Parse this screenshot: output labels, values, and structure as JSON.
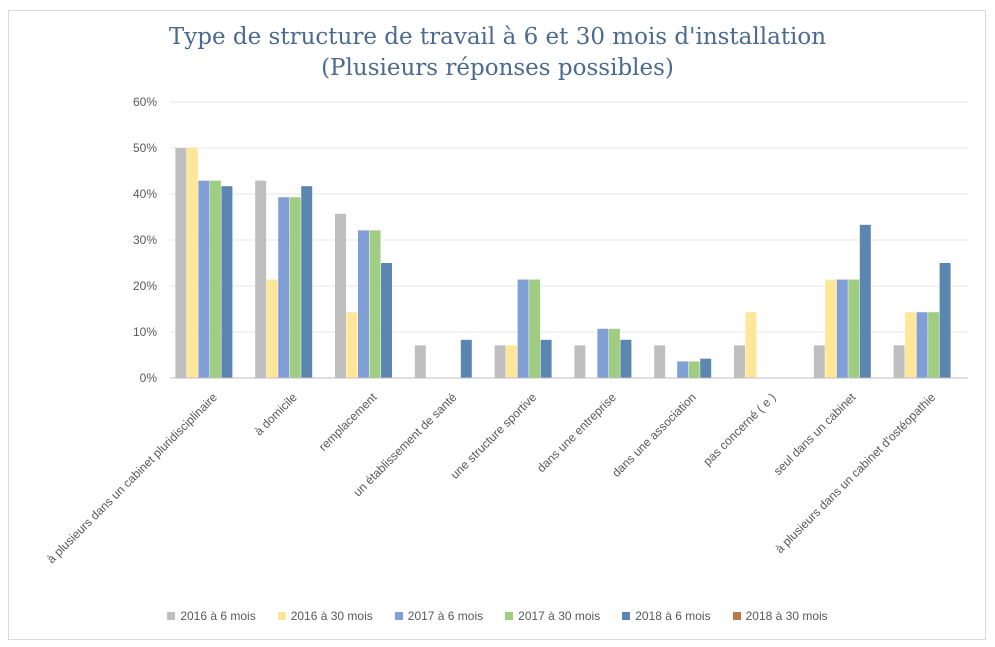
{
  "chart_data": {
    "type": "bar",
    "title": "Type de structure de travail à 6 et 30 mois d'installation",
    "subtitle": "(Plusieurs réponses possibles)",
    "categories": [
      "à plusieurs dans un cabinet pluridisciplinaire",
      "à domicile",
      "remplacement",
      "un établissement de santé",
      "une structure sportive",
      "dans une entreprise",
      "dans une association",
      "pas concerné ( e )",
      "seul dans un cabinet",
      "à plusieurs dans un cabinet d'ostéopathie"
    ],
    "ylim": [
      0,
      60
    ],
    "yticks": [
      "0%",
      "10%",
      "20%",
      "30%",
      "40%",
      "50%",
      "60%"
    ],
    "ytick_values": [
      0,
      10,
      20,
      30,
      40,
      50,
      60
    ],
    "grid": true,
    "legend_position": "bottom",
    "series": [
      {
        "name": "2016 à 6 mois",
        "color": "#bfbfbf",
        "values": [
          50,
          42.9,
          35.7,
          7.1,
          7.1,
          7.1,
          7.1,
          7.1,
          7.1,
          7.1
        ]
      },
      {
        "name": "2016 à 30 mois",
        "color": "#ffe699",
        "values": [
          50,
          21.4,
          14.3,
          0,
          7.1,
          0,
          0,
          14.3,
          21.4,
          14.3
        ]
      },
      {
        "name": "2017 à 6 mois",
        "color": "#7f9fd6",
        "values": [
          42.9,
          39.3,
          32.1,
          0,
          21.4,
          10.7,
          3.6,
          0,
          21.4,
          14.3
        ]
      },
      {
        "name": "2017 à 30 mois",
        "color": "#9fcd82",
        "values": [
          42.9,
          39.3,
          32.1,
          0,
          21.4,
          10.7,
          3.6,
          0,
          21.4,
          14.3
        ]
      },
      {
        "name": "2018 à 6 mois",
        "color": "#5b86b0",
        "values": [
          41.7,
          41.7,
          25,
          8.3,
          8.3,
          8.3,
          4.2,
          0,
          33.3,
          25
        ]
      },
      {
        "name": "2018 à 30 mois",
        "color": "#c0784a",
        "values": [
          0,
          0,
          0,
          0,
          0,
          0,
          0,
          0,
          0,
          0
        ]
      }
    ]
  }
}
